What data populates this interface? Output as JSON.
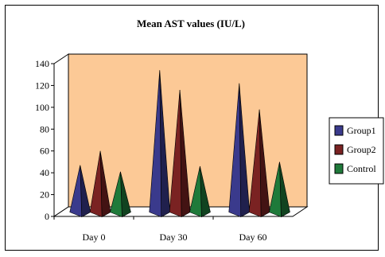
{
  "chart_data": {
    "type": "bar",
    "style": "3d-cone",
    "title": "Mean AST values (IU/L)",
    "xlabel": "",
    "ylabel": "",
    "categories": [
      "Day 0",
      "Day 30",
      "Day 60"
    ],
    "series": [
      {
        "name": "Group1",
        "values": [
          43,
          130,
          118
        ],
        "color": "#3a3a8c"
      },
      {
        "name": "Group2",
        "values": [
          56,
          112,
          94
        ],
        "color": "#7a2222"
      },
      {
        "name": "Control",
        "values": [
          37,
          42,
          46
        ],
        "color": "#1f7a3a"
      }
    ],
    "ylim": [
      0,
      140
    ],
    "yticks": [
      0,
      20,
      40,
      60,
      80,
      100,
      120,
      140
    ],
    "legend_position": "right",
    "wall_color": "#fcc996",
    "grid": false
  }
}
